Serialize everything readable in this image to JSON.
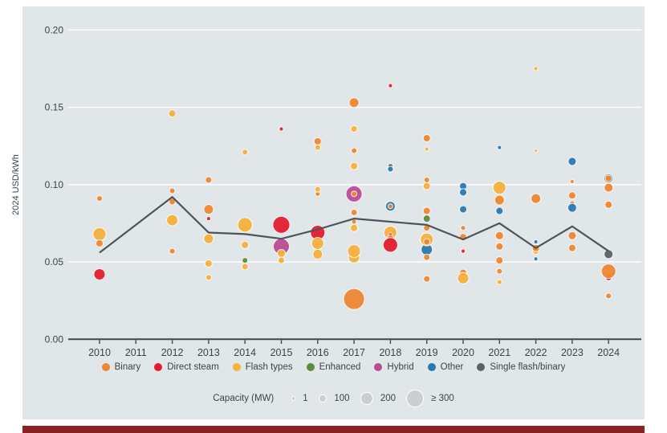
{
  "figure": {
    "panel_background": "#e1e6e9",
    "footer_bar_color": "#8b2025",
    "gridline_color": "#ffffff",
    "axis_color": "#3f474d",
    "text_color": "#3b444b"
  },
  "chart_data": {
    "type": "scatter",
    "title": "",
    "ylabel": "2024 USD/kWh",
    "ylim": [
      0.0,
      0.2
    ],
    "ytick_labels": [
      "0.00",
      "0.05",
      "0.10",
      "0.15",
      "0.20"
    ],
    "yticks": [
      0.0,
      0.05,
      0.1,
      0.15,
      0.2
    ],
    "x_categories": [
      "2010",
      "2011",
      "2012",
      "2013",
      "2014",
      "2015",
      "2016",
      "2017",
      "2018",
      "2019",
      "2020",
      "2021",
      "2022",
      "2023",
      "2024"
    ],
    "grid": "horizontal",
    "legend_position": "bottom",
    "colors": {
      "binary": "#ed8733",
      "direct_steam": "#e31c2d",
      "flash": "#f5b03d",
      "enhanced": "#5d8a40",
      "hybrid": "#b84c93",
      "other": "#2879b2",
      "single": "#5a6268"
    },
    "legend": [
      {
        "key": "binary",
        "label": "Binary"
      },
      {
        "key": "direct_steam",
        "label": "Direct steam"
      },
      {
        "key": "flash",
        "label": "Flash types"
      },
      {
        "key": "enhanced",
        "label": "Enhanced"
      },
      {
        "key": "hybrid",
        "label": "Hybrid"
      },
      {
        "key": "other",
        "label": "Other"
      },
      {
        "key": "single",
        "label": "Single flash/binary"
      }
    ],
    "size_legend": {
      "title": "Capacity (MW)",
      "swatch_color": "#c9ced3",
      "items": [
        {
          "label": "1",
          "mw": 1
        },
        {
          "label": "100",
          "mw": 100
        },
        {
          "label": "200",
          "mw": 200
        },
        {
          "label": "≥ 300",
          "mw": 300
        }
      ]
    },
    "weighted_average_line": {
      "color": "#4c555c",
      "points": [
        {
          "year": 2010,
          "value": 0.056
        },
        {
          "year": 2012,
          "value": 0.092
        },
        {
          "year": 2013,
          "value": 0.069
        },
        {
          "year": 2014,
          "value": 0.068
        },
        {
          "year": 2015,
          "value": 0.065
        },
        {
          "year": 2016,
          "value": 0.071
        },
        {
          "year": 2017,
          "value": 0.078
        },
        {
          "year": 2018,
          "value": 0.076
        },
        {
          "year": 2019,
          "value": 0.074
        },
        {
          "year": 2020,
          "value": 0.0645
        },
        {
          "year": 2021,
          "value": 0.075
        },
        {
          "year": 2022,
          "value": 0.059
        },
        {
          "year": 2023,
          "value": 0.073
        },
        {
          "year": 2024,
          "value": 0.057
        }
      ]
    },
    "bubbles": [
      {
        "year": 2010,
        "value": 0.091,
        "type": "binary",
        "mw": 71
      },
      {
        "year": 2010,
        "value": 0.068,
        "type": "flash",
        "mw": 229
      },
      {
        "year": 2010,
        "value": 0.062,
        "type": "binary",
        "mw": 106
      },
      {
        "year": 2010,
        "value": 0.042,
        "type": "direct_steam",
        "mw": 194
      },
      {
        "year": 2012,
        "value": 0.146,
        "type": "flash",
        "mw": 106
      },
      {
        "year": 2012,
        "value": 0.096,
        "type": "binary",
        "mw": 71
      },
      {
        "year": 2012,
        "value": 0.089,
        "type": "binary",
        "mw": 88
      },
      {
        "year": 2012,
        "value": 0.077,
        "type": "flash",
        "mw": 194
      },
      {
        "year": 2012,
        "value": 0.057,
        "type": "binary",
        "mw": 71
      },
      {
        "year": 2013,
        "value": 0.103,
        "type": "binary",
        "mw": 88
      },
      {
        "year": 2013,
        "value": 0.084,
        "type": "binary",
        "mw": 159
      },
      {
        "year": 2013,
        "value": 0.078,
        "type": "direct_steam",
        "mw": 35
      },
      {
        "year": 2013,
        "value": 0.065,
        "type": "flash",
        "mw": 159
      },
      {
        "year": 2013,
        "value": 0.049,
        "type": "flash",
        "mw": 106
      },
      {
        "year": 2013,
        "value": 0.04,
        "type": "flash",
        "mw": 71
      },
      {
        "year": 2014,
        "value": 0.121,
        "type": "flash",
        "mw": 71
      },
      {
        "year": 2014,
        "value": 0.074,
        "type": "flash",
        "mw": 265
      },
      {
        "year": 2014,
        "value": 0.061,
        "type": "flash",
        "mw": 106
      },
      {
        "year": 2014,
        "value": 0.051,
        "type": "enhanced",
        "mw": 71
      },
      {
        "year": 2014,
        "value": 0.047,
        "type": "flash",
        "mw": 88
      },
      {
        "year": 2015,
        "value": 0.136,
        "type": "direct_steam",
        "mw": 35
      },
      {
        "year": 2015,
        "value": 0.074,
        "type": "direct_steam",
        "mw": 318
      },
      {
        "year": 2015,
        "value": 0.06,
        "type": "hybrid",
        "mw": 300
      },
      {
        "year": 2015,
        "value": 0.0555,
        "type": "flash",
        "mw": 124
      },
      {
        "year": 2015,
        "value": 0.051,
        "type": "flash",
        "mw": 88
      },
      {
        "year": 2016,
        "value": 0.124,
        "type": "flash",
        "mw": 71
      },
      {
        "year": 2016,
        "value": 0.128,
        "type": "binary",
        "mw": 106
      },
      {
        "year": 2016,
        "value": 0.094,
        "type": "binary",
        "mw": 53
      },
      {
        "year": 2016,
        "value": 0.097,
        "type": "flash",
        "mw": 71
      },
      {
        "year": 2016,
        "value": 0.069,
        "type": "direct_steam",
        "mw": 265
      },
      {
        "year": 2016,
        "value": 0.062,
        "type": "flash",
        "mw": 212
      },
      {
        "year": 2016,
        "value": 0.055,
        "type": "flash",
        "mw": 159
      },
      {
        "year": 2017,
        "value": 0.153,
        "type": "binary",
        "mw": 159
      },
      {
        "year": 2017,
        "value": 0.136,
        "type": "flash",
        "mw": 88
      },
      {
        "year": 2017,
        "value": 0.122,
        "type": "binary",
        "mw": 71
      },
      {
        "year": 2017,
        "value": 0.112,
        "type": "flash",
        "mw": 106
      },
      {
        "year": 2017,
        "value": 0.094,
        "type": "hybrid",
        "mw": 300
      },
      {
        "year": 2017,
        "value": 0.094,
        "type": "binary",
        "mw": 71
      },
      {
        "year": 2017,
        "value": 0.082,
        "type": "binary",
        "mw": 88
      },
      {
        "year": 2017,
        "value": 0.076,
        "type": "binary",
        "mw": 53
      },
      {
        "year": 2017,
        "value": 0.072,
        "type": "flash",
        "mw": 106
      },
      {
        "year": 2017,
        "value": 0.053,
        "type": "flash",
        "mw": 194
      },
      {
        "year": 2017,
        "value": 0.057,
        "type": "flash",
        "mw": 229
      },
      {
        "year": 2017,
        "value": 0.026,
        "type": "binary",
        "mw": 406
      },
      {
        "year": 2018,
        "value": 0.164,
        "type": "direct_steam",
        "mw": 35
      },
      {
        "year": 2018,
        "value": 0.112,
        "type": "single",
        "mw": 53
      },
      {
        "year": 2018,
        "value": 0.11,
        "type": "other",
        "mw": 71
      },
      {
        "year": 2018,
        "value": 0.086,
        "type": "other",
        "mw": 159
      },
      {
        "year": 2018,
        "value": 0.086,
        "type": "binary",
        "mw": 53
      },
      {
        "year": 2018,
        "value": 0.069,
        "type": "flash",
        "mw": 229
      },
      {
        "year": 2018,
        "value": 0.0675,
        "type": "direct_steam",
        "mw": 35
      },
      {
        "year": 2018,
        "value": 0.0655,
        "type": "binary",
        "mw": 88
      },
      {
        "year": 2018,
        "value": 0.061,
        "type": "direct_steam",
        "mw": 265
      },
      {
        "year": 2019,
        "value": 0.13,
        "type": "binary",
        "mw": 106
      },
      {
        "year": 2019,
        "value": 0.123,
        "type": "flash",
        "mw": 35
      },
      {
        "year": 2019,
        "value": 0.103,
        "type": "binary",
        "mw": 71
      },
      {
        "year": 2019,
        "value": 0.099,
        "type": "flash",
        "mw": 106
      },
      {
        "year": 2019,
        "value": 0.083,
        "type": "binary",
        "mw": 106
      },
      {
        "year": 2019,
        "value": 0.078,
        "type": "enhanced",
        "mw": 106
      },
      {
        "year": 2019,
        "value": 0.072,
        "type": "binary",
        "mw": 88
      },
      {
        "year": 2019,
        "value": 0.058,
        "type": "other",
        "mw": 194
      },
      {
        "year": 2019,
        "value": 0.0645,
        "type": "flash",
        "mw": 229
      },
      {
        "year": 2019,
        "value": 0.063,
        "type": "binary",
        "mw": 88
      },
      {
        "year": 2019,
        "value": 0.053,
        "type": "binary",
        "mw": 88
      },
      {
        "year": 2019,
        "value": 0.039,
        "type": "binary",
        "mw": 88
      },
      {
        "year": 2020,
        "value": 0.099,
        "type": "other",
        "mw": 106
      },
      {
        "year": 2020,
        "value": 0.095,
        "type": "other",
        "mw": 106
      },
      {
        "year": 2020,
        "value": 0.084,
        "type": "other",
        "mw": 106
      },
      {
        "year": 2020,
        "value": 0.072,
        "type": "binary",
        "mw": 53
      },
      {
        "year": 2020,
        "value": 0.066,
        "type": "binary",
        "mw": 106
      },
      {
        "year": 2020,
        "value": 0.057,
        "type": "direct_steam",
        "mw": 35
      },
      {
        "year": 2020,
        "value": 0.043,
        "type": "binary",
        "mw": 106
      },
      {
        "year": 2020,
        "value": 0.0395,
        "type": "flash",
        "mw": 194
      },
      {
        "year": 2021,
        "value": 0.124,
        "type": "other",
        "mw": 35
      },
      {
        "year": 2021,
        "value": 0.098,
        "type": "flash",
        "mw": 229
      },
      {
        "year": 2021,
        "value": 0.09,
        "type": "binary",
        "mw": 159
      },
      {
        "year": 2021,
        "value": 0.083,
        "type": "other",
        "mw": 106
      },
      {
        "year": 2021,
        "value": 0.067,
        "type": "binary",
        "mw": 124
      },
      {
        "year": 2021,
        "value": 0.06,
        "type": "binary",
        "mw": 106
      },
      {
        "year": 2021,
        "value": 0.051,
        "type": "binary",
        "mw": 106
      },
      {
        "year": 2021,
        "value": 0.044,
        "type": "binary",
        "mw": 71
      },
      {
        "year": 2021,
        "value": 0.037,
        "type": "flash",
        "mw": 53
      },
      {
        "year": 2022,
        "value": 0.175,
        "type": "flash",
        "mw": 35
      },
      {
        "year": 2022,
        "value": 0.122,
        "type": "flash",
        "mw": 18
      },
      {
        "year": 2022,
        "value": 0.091,
        "type": "binary",
        "mw": 159
      },
      {
        "year": 2022,
        "value": 0.063,
        "type": "other",
        "mw": 35
      },
      {
        "year": 2022,
        "value": 0.057,
        "type": "flash",
        "mw": 88
      },
      {
        "year": 2022,
        "value": 0.059,
        "type": "binary",
        "mw": 106
      },
      {
        "year": 2022,
        "value": 0.052,
        "type": "other",
        "mw": 35
      },
      {
        "year": 2023,
        "value": 0.115,
        "type": "other",
        "mw": 124
      },
      {
        "year": 2023,
        "value": 0.102,
        "type": "binary",
        "mw": 35
      },
      {
        "year": 2023,
        "value": 0.093,
        "type": "binary",
        "mw": 106
      },
      {
        "year": 2023,
        "value": 0.088,
        "type": "binary",
        "mw": 53
      },
      {
        "year": 2023,
        "value": 0.085,
        "type": "other",
        "mw": 141
      },
      {
        "year": 2023,
        "value": 0.067,
        "type": "binary",
        "mw": 124
      },
      {
        "year": 2023,
        "value": 0.059,
        "type": "binary",
        "mw": 106
      },
      {
        "year": 2024,
        "value": 0.104,
        "type": "single",
        "mw": 141
      },
      {
        "year": 2024,
        "value": 0.104,
        "type": "binary",
        "mw": 88
      },
      {
        "year": 2024,
        "value": 0.098,
        "type": "binary",
        "mw": 141
      },
      {
        "year": 2024,
        "value": 0.087,
        "type": "binary",
        "mw": 106
      },
      {
        "year": 2024,
        "value": 0.055,
        "type": "single",
        "mw": 141
      },
      {
        "year": 2024,
        "value": 0.04,
        "type": "direct_steam",
        "mw": 88
      },
      {
        "year": 2024,
        "value": 0.044,
        "type": "binary",
        "mw": 265
      },
      {
        "year": 2024,
        "value": 0.028,
        "type": "binary",
        "mw": 71
      }
    ]
  }
}
